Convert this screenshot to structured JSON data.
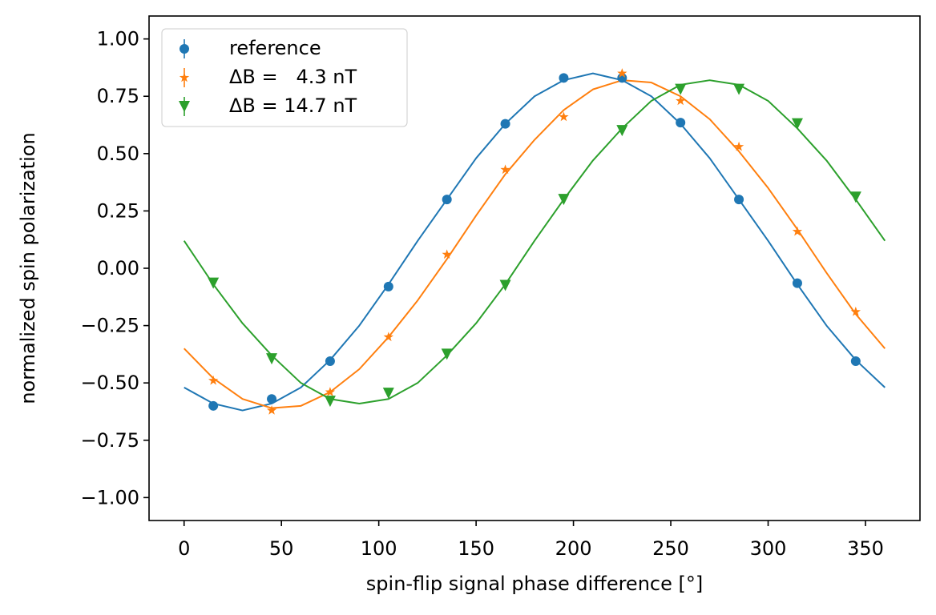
{
  "chart_data": {
    "type": "scatter",
    "xlabel": "spin-flip signal phase difference [°]",
    "ylabel": "normalized spin polarization",
    "xlim": [
      -18,
      378
    ],
    "xticks": [
      0,
      50,
      100,
      150,
      200,
      250,
      300,
      350
    ],
    "ylim": [
      -1.1,
      1.1
    ],
    "yticks": [
      {
        "value": -1,
        "label": "−1.00"
      },
      {
        "value": -0.75,
        "label": "−0.75"
      },
      {
        "value": -0.5,
        "label": "−0.50"
      },
      {
        "value": -0.25,
        "label": "−0.25"
      },
      {
        "value": 0,
        "label": "0.00"
      },
      {
        "value": 0.25,
        "label": "0.25"
      },
      {
        "value": 0.5,
        "label": "0.50"
      },
      {
        "value": 0.75,
        "label": "0.75"
      },
      {
        "value": 1,
        "label": "1.00"
      }
    ],
    "grid": false,
    "legend": "upper left",
    "series": [
      {
        "name": "reference",
        "color": "#1f77b4",
        "marker": "circle",
        "x": [
          15,
          45,
          75,
          105,
          135,
          165,
          195,
          225,
          255,
          285,
          315,
          345
        ],
        "values": [
          -0.6,
          -0.57,
          -0.405,
          -0.08,
          0.3,
          0.63,
          0.83,
          0.83,
          0.635,
          0.3,
          -0.065,
          -0.405
        ]
      },
      {
        "name": "ΔB =   4.3 nT",
        "color": "#ff7f0e",
        "marker": "star",
        "x": [
          15,
          45,
          75,
          105,
          135,
          165,
          195,
          225,
          255,
          285,
          315,
          345
        ],
        "values": [
          -0.49,
          -0.62,
          -0.54,
          -0.3,
          0.06,
          0.43,
          0.66,
          0.85,
          0.73,
          0.53,
          0.16,
          -0.19
        ]
      },
      {
        "name": "ΔB = 14.7 nT",
        "color": "#2ca02c",
        "marker": "triangle-down",
        "x": [
          15,
          45,
          75,
          105,
          135,
          165,
          195,
          225,
          255,
          285,
          315,
          345
        ],
        "values": [
          -0.065,
          -0.395,
          -0.58,
          -0.545,
          -0.375,
          -0.075,
          0.3,
          0.6,
          0.78,
          0.78,
          0.63,
          0.31
        ]
      },
      {
        "color": "#1f77b4",
        "marker": "line",
        "x": [
          0,
          15,
          30,
          45,
          60,
          75,
          90,
          105,
          120,
          135,
          150,
          165,
          180,
          195,
          210,
          225,
          240,
          255,
          270,
          285,
          300,
          315,
          330,
          345,
          360
        ],
        "values": [
          -0.52,
          -0.59,
          -0.62,
          -0.59,
          -0.52,
          -0.4,
          -0.25,
          -0.07,
          0.12,
          0.3,
          0.48,
          0.63,
          0.75,
          0.82,
          0.85,
          0.82,
          0.75,
          0.63,
          0.48,
          0.3,
          0.12,
          -0.07,
          -0.25,
          -0.4,
          -0.52
        ]
      },
      {
        "color": "#ff7f0e",
        "marker": "line",
        "x": [
          0,
          15,
          30,
          45,
          60,
          75,
          90,
          105,
          120,
          135,
          150,
          165,
          180,
          195,
          210,
          225,
          240,
          255,
          270,
          285,
          300,
          315,
          330,
          345,
          360
        ],
        "values": [
          -0.35,
          -0.48,
          -0.57,
          -0.61,
          -0.6,
          -0.54,
          -0.44,
          -0.3,
          -0.14,
          0.04,
          0.23,
          0.41,
          0.56,
          0.69,
          0.78,
          0.82,
          0.81,
          0.75,
          0.65,
          0.51,
          0.35,
          0.17,
          -0.02,
          -0.2,
          -0.35
        ]
      },
      {
        "color": "#2ca02c",
        "marker": "line",
        "x": [
          0,
          15,
          30,
          45,
          60,
          75,
          90,
          105,
          120,
          135,
          150,
          165,
          180,
          195,
          210,
          225,
          240,
          255,
          270,
          285,
          300,
          315,
          330,
          345,
          360
        ],
        "values": [
          0.12,
          -0.07,
          -0.24,
          -0.38,
          -0.5,
          -0.57,
          -0.59,
          -0.57,
          -0.5,
          -0.38,
          -0.24,
          -0.07,
          0.12,
          0.3,
          0.47,
          0.61,
          0.73,
          0.8,
          0.82,
          0.8,
          0.73,
          0.61,
          0.47,
          0.3,
          0.12
        ]
      }
    ]
  }
}
